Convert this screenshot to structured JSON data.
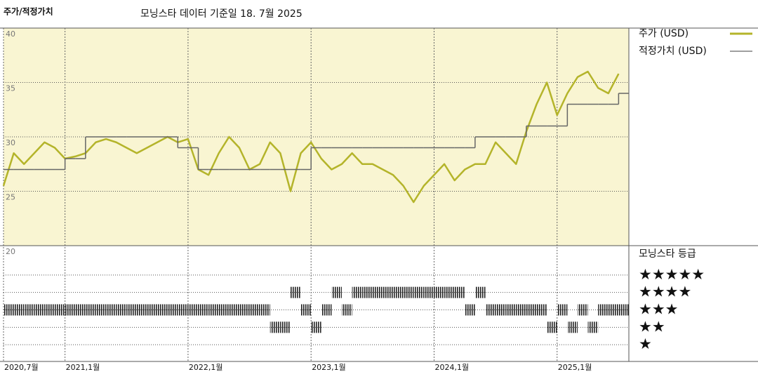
{
  "chart_data": [
    {
      "type": "line",
      "title": "주가/적정가치",
      "subtitle": "모닝스타 데이터 기준일 18. 7월 2025",
      "background": "#f9f5d2",
      "grid": true,
      "x": [
        "2020-07",
        "2020-08",
        "2020-09",
        "2020-10",
        "2020-11",
        "2020-12",
        "2021-01",
        "2021-02",
        "2021-03",
        "2021-04",
        "2021-05",
        "2021-06",
        "2021-07",
        "2021-08",
        "2021-09",
        "2021-10",
        "2021-11",
        "2021-12",
        "2022-01",
        "2022-02",
        "2022-03",
        "2022-04",
        "2022-05",
        "2022-06",
        "2022-07",
        "2022-08",
        "2022-09",
        "2022-10",
        "2022-11",
        "2022-12",
        "2023-01",
        "2023-02",
        "2023-03",
        "2023-04",
        "2023-05",
        "2023-06",
        "2023-07",
        "2023-08",
        "2023-09",
        "2023-10",
        "2023-11",
        "2023-12",
        "2024-01",
        "2024-02",
        "2024-03",
        "2024-04",
        "2024-05",
        "2024-06",
        "2024-07",
        "2024-08",
        "2024-09",
        "2024-10",
        "2024-11",
        "2024-12",
        "2025-01",
        "2025-02",
        "2025-03",
        "2025-04",
        "2025-05",
        "2025-06",
        "2025-07"
      ],
      "xlim": [
        "2020-07",
        "2025-08"
      ],
      "xticks": [
        {
          "value": "2020-07",
          "label": "2020,7월"
        },
        {
          "value": "2021-01",
          "label": "2021,1월"
        },
        {
          "value": "2022-01",
          "label": "2022,1월"
        },
        {
          "value": "2023-01",
          "label": "2023,1월"
        },
        {
          "value": "2024-01",
          "label": "2024,1월"
        },
        {
          "value": "2025-01",
          "label": "2025,1월"
        }
      ],
      "ylim": [
        20,
        40
      ],
      "yticks": [
        20,
        25,
        30,
        35,
        40
      ],
      "series": [
        {
          "name": "주가 (USD)",
          "color": "#b4b42a",
          "values": [
            25.5,
            28.5,
            27.5,
            28.5,
            29.5,
            29,
            28,
            28.2,
            28.5,
            29.5,
            29.8,
            29.5,
            29,
            28.5,
            29,
            29.5,
            30,
            29.5,
            29.8,
            27,
            26.5,
            28.5,
            30,
            29,
            27,
            27.5,
            29.5,
            28.5,
            25,
            28.5,
            29.5,
            28,
            27,
            27.5,
            28.5,
            27.5,
            27.5,
            27,
            26.5,
            25.5,
            24,
            25.5,
            26.5,
            27.5,
            26,
            27,
            27.5,
            27.5,
            29.5,
            28.5,
            27.5,
            30.5,
            33,
            35,
            32,
            34,
            35.5,
            36,
            34.5,
            34,
            35.8
          ]
        },
        {
          "name": "적정가치 (USD)",
          "color": "#666666",
          "step": true,
          "values": [
            27,
            27,
            27,
            27,
            27,
            27,
            28,
            28,
            30,
            30,
            30,
            30,
            30,
            30,
            30,
            30,
            30,
            29,
            29,
            27,
            27,
            27,
            27,
            27,
            27,
            27,
            27,
            27,
            27,
            27,
            29,
            29,
            29,
            29,
            29,
            29,
            29,
            29,
            29,
            29,
            29,
            29,
            29,
            29,
            29,
            29,
            30,
            30,
            30,
            30,
            30,
            31,
            31,
            31,
            31,
            33,
            33,
            33,
            33,
            33,
            34
          ]
        }
      ]
    },
    {
      "type": "rating",
      "title": "모닝스타 등급",
      "grid": true,
      "x": [
        "2020-07",
        "2020-08",
        "2020-09",
        "2020-10",
        "2020-11",
        "2020-12",
        "2021-01",
        "2021-02",
        "2021-03",
        "2021-04",
        "2021-05",
        "2021-06",
        "2021-07",
        "2021-08",
        "2021-09",
        "2021-10",
        "2021-11",
        "2021-12",
        "2022-01",
        "2022-02",
        "2022-03",
        "2022-04",
        "2022-05",
        "2022-06",
        "2022-07",
        "2022-08",
        "2022-09",
        "2022-10",
        "2022-11",
        "2022-12",
        "2023-01",
        "2023-02",
        "2023-03",
        "2023-04",
        "2023-05",
        "2023-06",
        "2023-07",
        "2023-08",
        "2023-09",
        "2023-10",
        "2023-11",
        "2023-12",
        "2024-01",
        "2024-02",
        "2024-03",
        "2024-04",
        "2024-05",
        "2024-06",
        "2024-07",
        "2024-08",
        "2024-09",
        "2024-10",
        "2024-11",
        "2024-12",
        "2025-01",
        "2025-02",
        "2025-03",
        "2025-04",
        "2025-05",
        "2025-06",
        "2025-07"
      ],
      "xlim": [
        "2020-07",
        "2025-08"
      ],
      "ylim": [
        0,
        6
      ],
      "yticks": [
        {
          "value": 5,
          "label": "★★★★★"
        },
        {
          "value": 4,
          "label": "★★★★"
        },
        {
          "value": 3,
          "label": "★★★"
        },
        {
          "value": 2,
          "label": "★★"
        },
        {
          "value": 1,
          "label": "★"
        }
      ],
      "series": [
        {
          "color": "#222222",
          "values": [
            3,
            3,
            3,
            3,
            3,
            3,
            3,
            3,
            3,
            3,
            3,
            3,
            3,
            3,
            3,
            3,
            3,
            3,
            3,
            3,
            3,
            3,
            3,
            3,
            3,
            3,
            2,
            2,
            4,
            3,
            2,
            3,
            4,
            3,
            4,
            4,
            4,
            4,
            4,
            4,
            4,
            4,
            4,
            4,
            4,
            3,
            4,
            3,
            3,
            3,
            3,
            3,
            3,
            2,
            3,
            2,
            3,
            2,
            3,
            3,
            3
          ]
        }
      ]
    }
  ]
}
